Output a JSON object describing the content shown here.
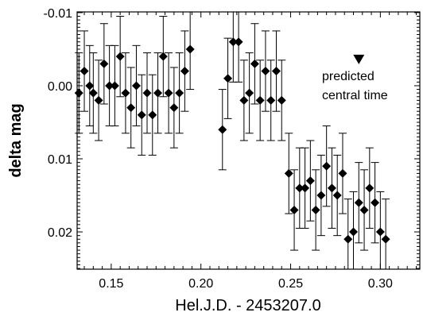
{
  "chart_data": {
    "type": "scatter",
    "xlabel": "Hel.J.D. - 2453207.0",
    "ylabel": "delta mag",
    "xlim": [
      0.131,
      0.322
    ],
    "ylim": [
      -0.0101,
      0.0251
    ],
    "y_inverted": true,
    "grid": false,
    "xticks": [
      0.15,
      0.2,
      0.25,
      0.3
    ],
    "xtick_labels": [
      "0.15",
      "0.20",
      "0.25",
      "0.30"
    ],
    "yticks": [
      -0.01,
      0.0,
      0.01,
      0.02
    ],
    "ytick_labels": [
      "-0.01",
      "0.00",
      "0.01",
      "0.02"
    ],
    "marker": "diamond",
    "error_bar": 0.0055,
    "points": [
      [
        0.132,
        0.001
      ],
      [
        0.135,
        -0.002
      ],
      [
        0.138,
        0.0
      ],
      [
        0.14,
        0.001
      ],
      [
        0.143,
        0.002
      ],
      [
        0.146,
        -0.003
      ],
      [
        0.149,
        0.0
      ],
      [
        0.152,
        0.0
      ],
      [
        0.155,
        -0.004
      ],
      [
        0.158,
        0.001
      ],
      [
        0.161,
        0.003
      ],
      [
        0.164,
        0.0
      ],
      [
        0.167,
        0.004
      ],
      [
        0.17,
        0.001
      ],
      [
        0.173,
        0.004
      ],
      [
        0.176,
        0.001
      ],
      [
        0.179,
        -0.004
      ],
      [
        0.182,
        0.001
      ],
      [
        0.185,
        0.003
      ],
      [
        0.188,
        0.001
      ],
      [
        0.191,
        -0.002
      ],
      [
        0.194,
        -0.005
      ],
      [
        0.212,
        0.006
      ],
      [
        0.215,
        -0.001
      ],
      [
        0.218,
        -0.006
      ],
      [
        0.221,
        -0.006
      ],
      [
        0.224,
        0.002
      ],
      [
        0.227,
        0.001
      ],
      [
        0.23,
        -0.003
      ],
      [
        0.233,
        0.002
      ],
      [
        0.236,
        -0.002
      ],
      [
        0.239,
        0.002
      ],
      [
        0.242,
        -0.002
      ],
      [
        0.245,
        0.002
      ],
      [
        0.249,
        0.012
      ],
      [
        0.252,
        0.017
      ],
      [
        0.255,
        0.014
      ],
      [
        0.258,
        0.014
      ],
      [
        0.261,
        0.013
      ],
      [
        0.264,
        0.017
      ],
      [
        0.267,
        0.015
      ],
      [
        0.27,
        0.011
      ],
      [
        0.273,
        0.014
      ],
      [
        0.276,
        0.015
      ],
      [
        0.279,
        0.012
      ],
      [
        0.282,
        0.021
      ],
      [
        0.285,
        0.02
      ],
      [
        0.288,
        0.016
      ],
      [
        0.291,
        0.017
      ],
      [
        0.294,
        0.014
      ],
      [
        0.297,
        0.016
      ],
      [
        0.3,
        0.02
      ],
      [
        0.303,
        0.021
      ]
    ],
    "annotation": {
      "marker": "inverted-triangle",
      "x": 0.288,
      "y": -0.0037,
      "lines": [
        "predicted",
        "central time"
      ]
    }
  }
}
